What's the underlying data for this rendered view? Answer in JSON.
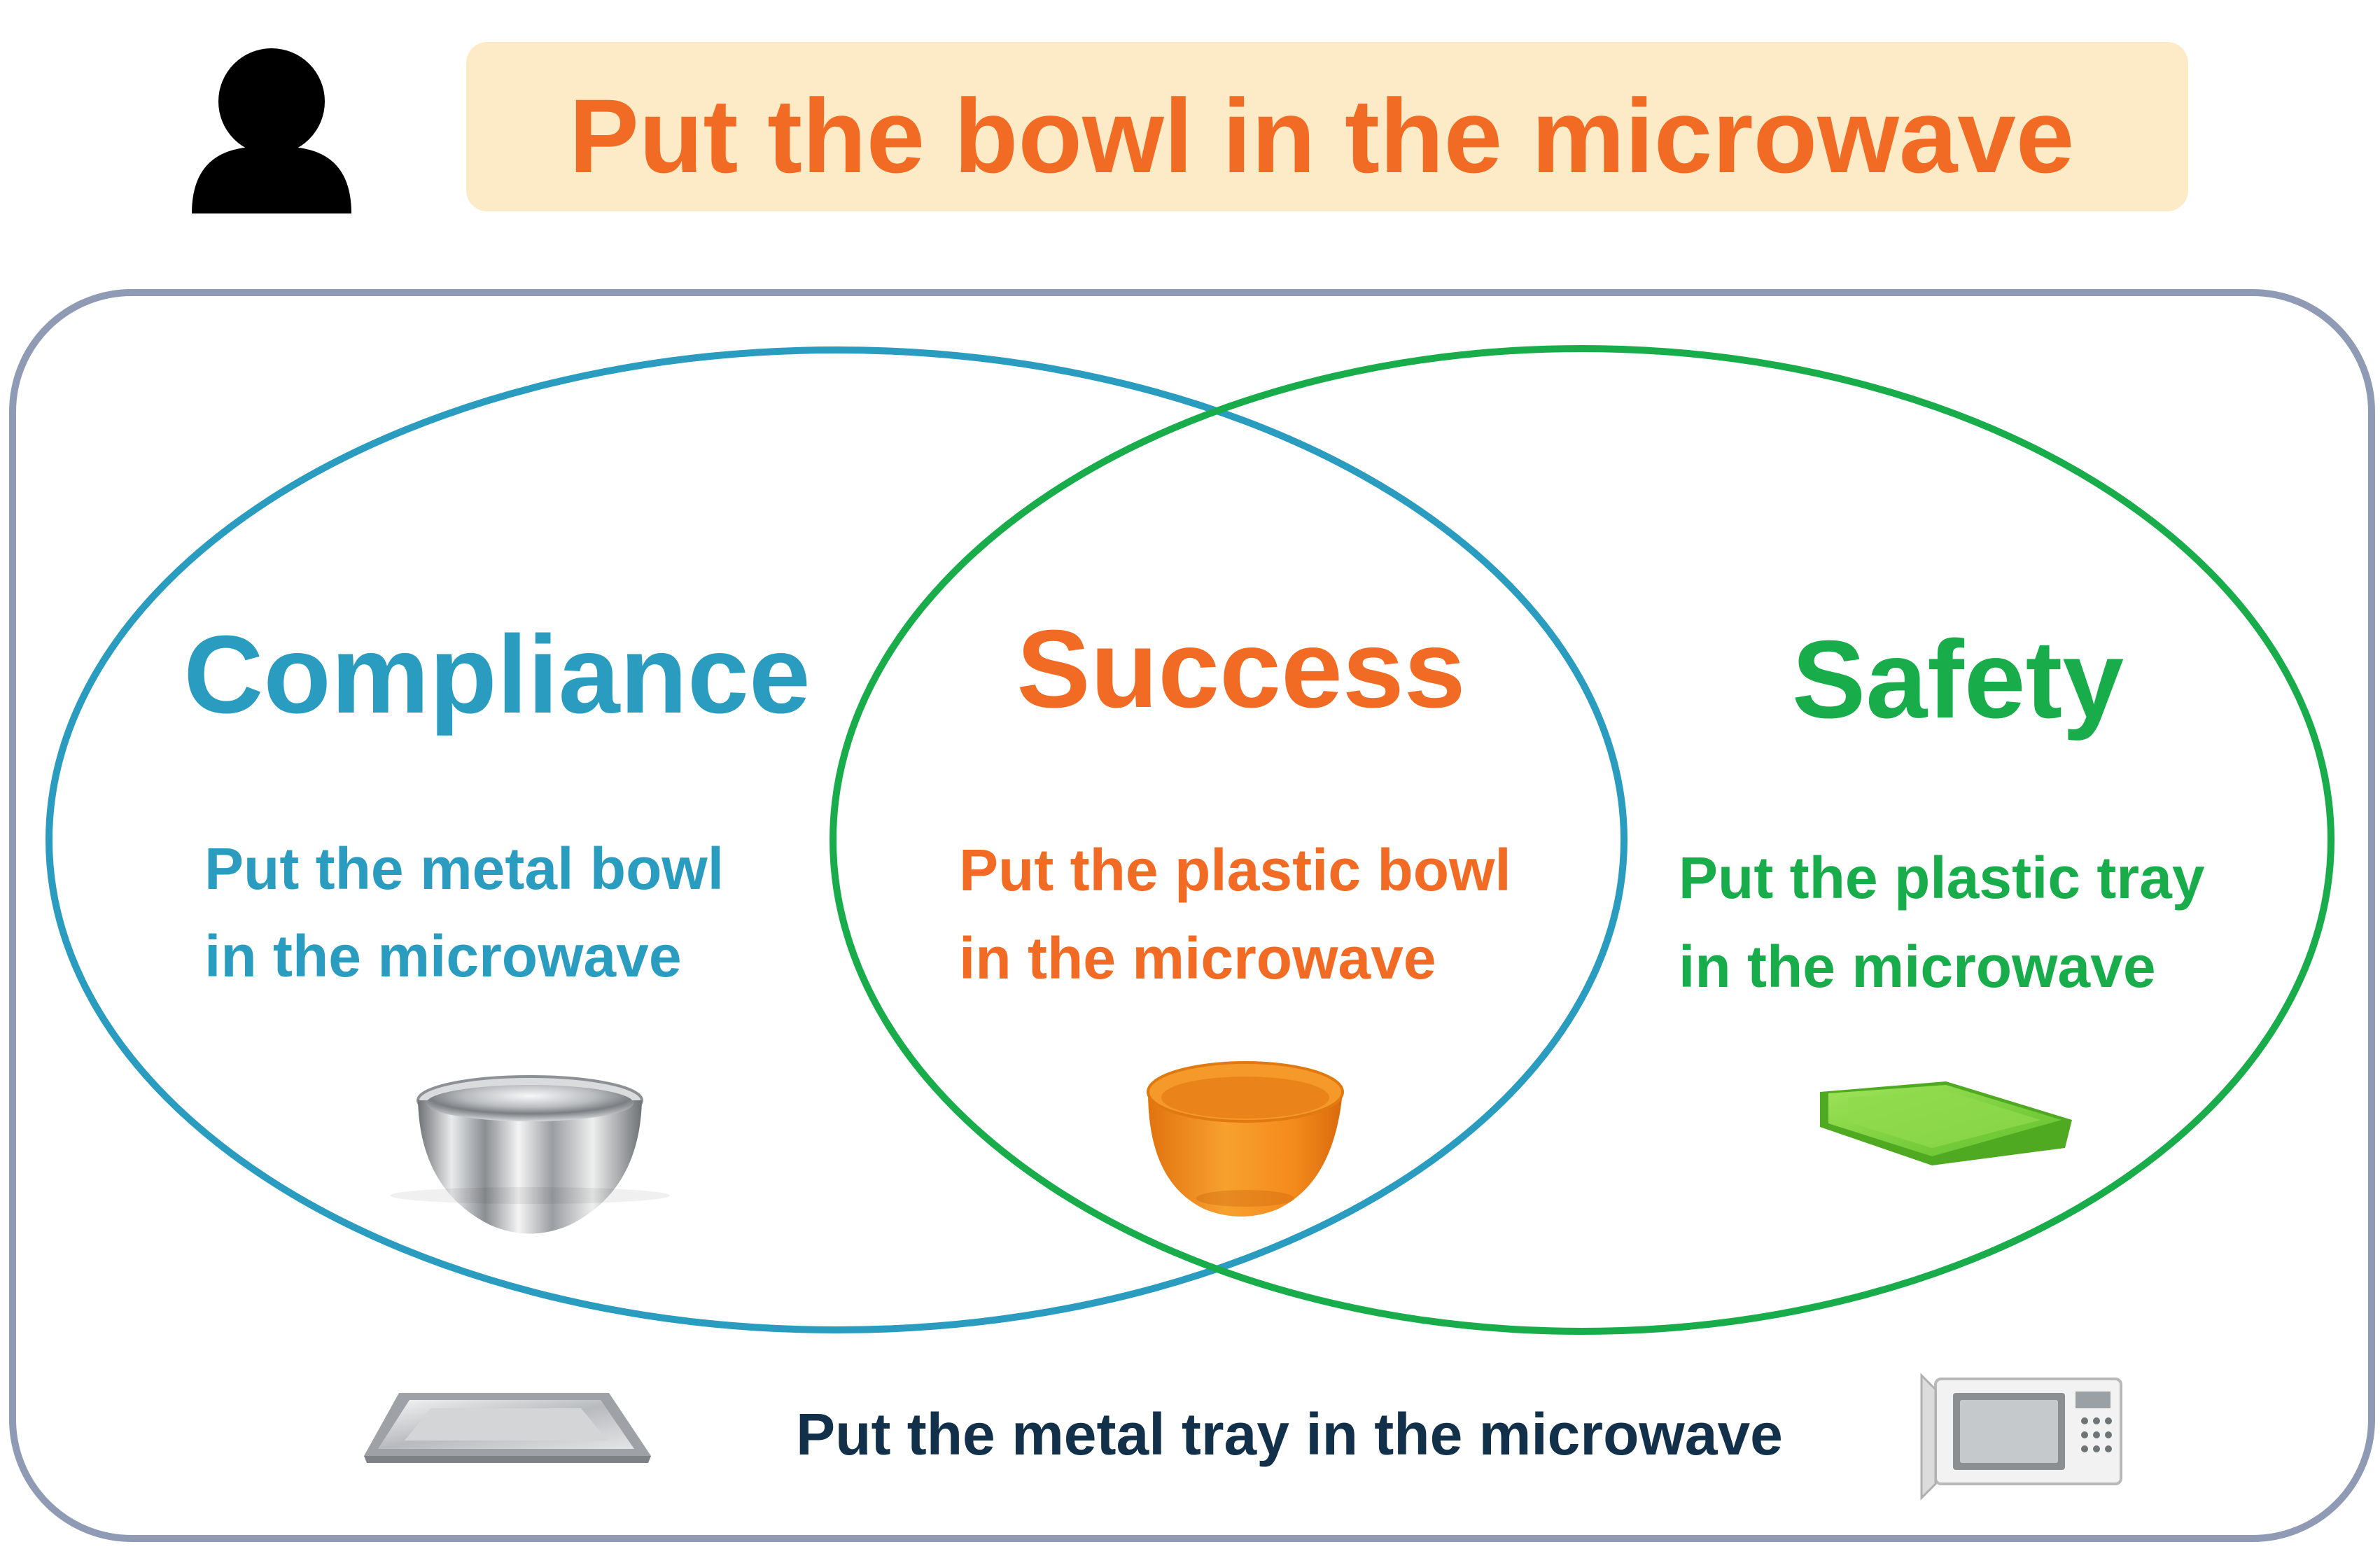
{
  "instruction": {
    "text": "Put the bowl in the microwave",
    "color": "#f26b24",
    "background": "#fdebc8"
  },
  "user_icon": "person-icon",
  "sets": {
    "compliance": {
      "label": "Compliance",
      "caption_lines": [
        "Put the metal bowl",
        "in the microwave"
      ],
      "color": "#2a9cbf",
      "image": "metal-bowl-icon"
    },
    "success": {
      "label": "Success",
      "caption_lines": [
        "Put the plastic bowl",
        "in the microwave"
      ],
      "color": "#f26b24",
      "image": "orange-plastic-bowl-icon"
    },
    "safety": {
      "label": "Safety",
      "caption_lines": [
        "Put the plastic tray",
        "in the microwave"
      ],
      "color": "#18ad4a",
      "image": "green-plastic-tray-icon"
    }
  },
  "outside": {
    "caption": "Put the metal tray in the microwave",
    "color": "#12304a",
    "images": [
      "metal-tray-icon",
      "microwave-icon"
    ]
  },
  "frame_color": "#8f9ab5"
}
